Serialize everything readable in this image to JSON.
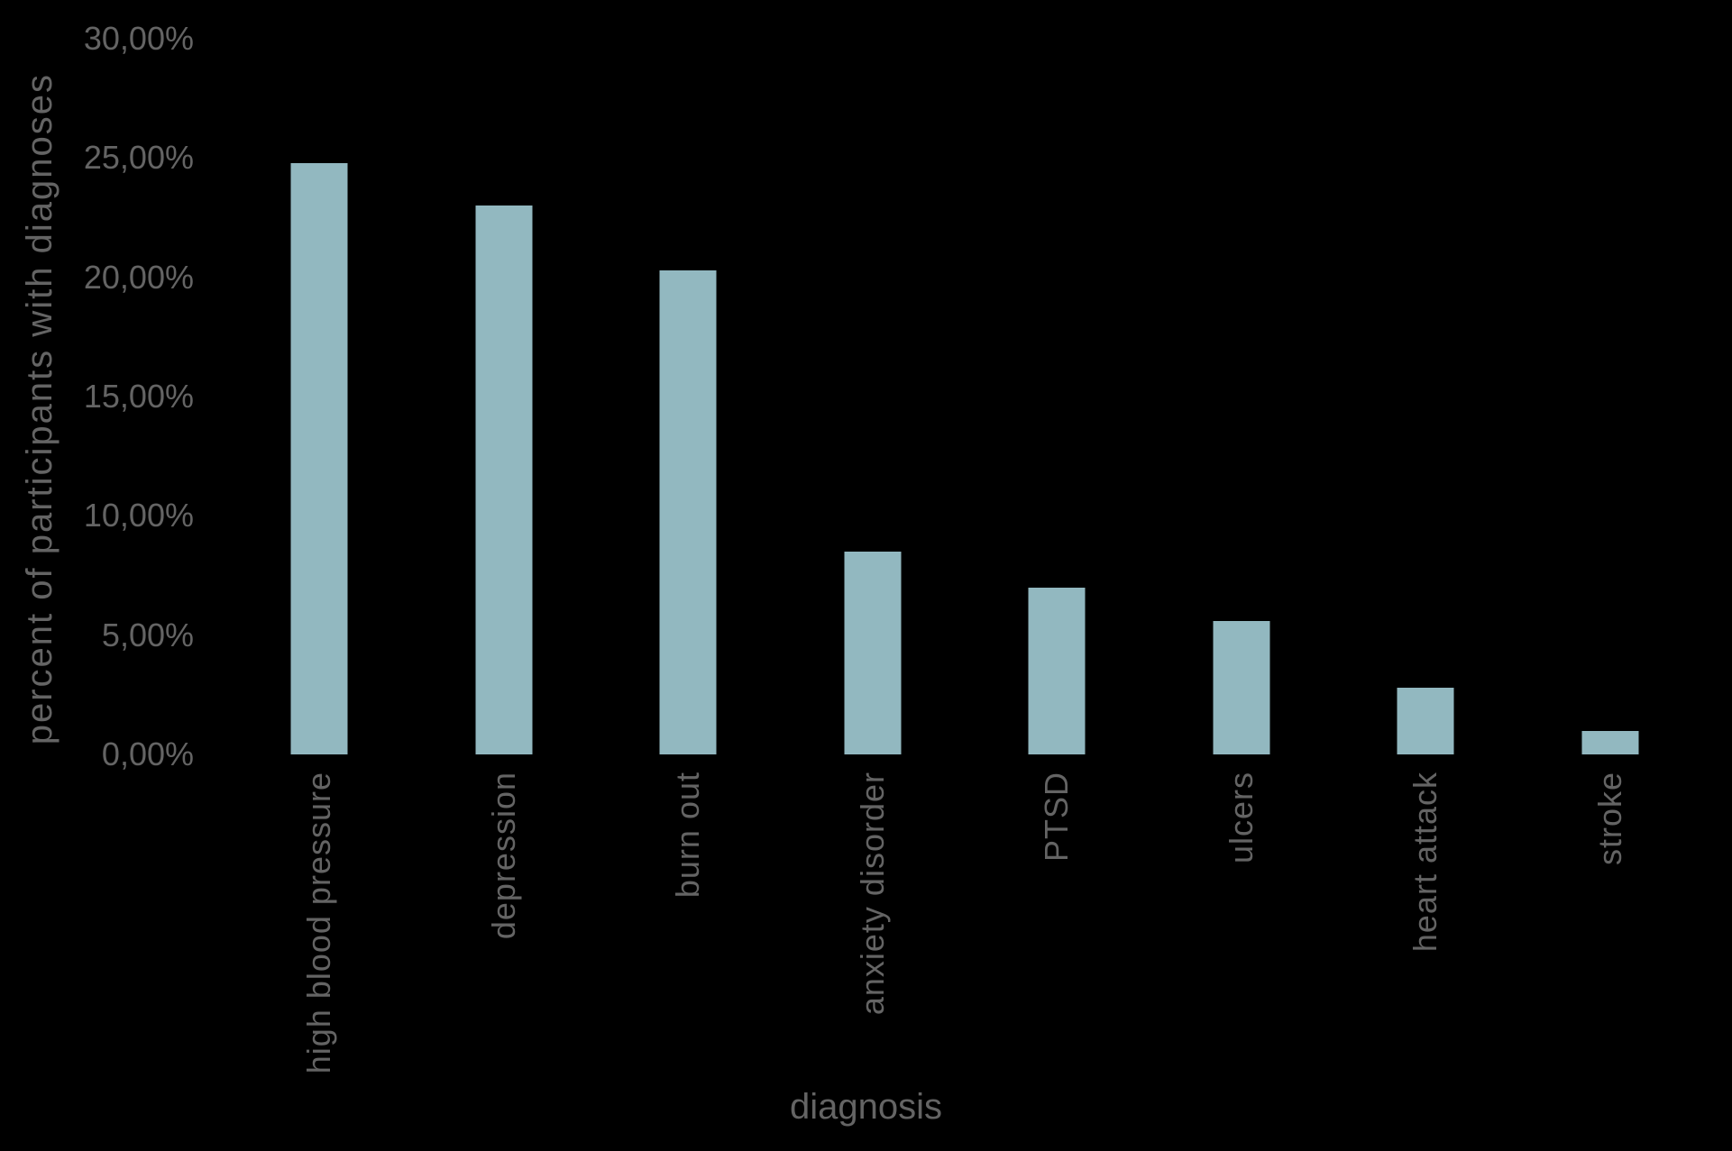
{
  "chart_data": {
    "type": "bar",
    "categories": [
      "high blood pressure",
      "depression",
      "burn out",
      "anxiety disorder",
      "PTSD",
      "ulcers",
      "heart attack",
      "stroke"
    ],
    "values": [
      24.8,
      23.0,
      20.3,
      8.5,
      7.0,
      5.6,
      2.8,
      1.0
    ],
    "title": "",
    "xlabel": "diagnosis",
    "ylabel": "percent of participants with diagnoses",
    "ylim": [
      0,
      30
    ],
    "ytick_step": 5,
    "ytick_labels": [
      "0,00%",
      "5,00%",
      "10,00%",
      "15,00%",
      "20,00%",
      "25,00%",
      "30,00%"
    ],
    "grid": false,
    "legend": false,
    "number_format": "comma-decimal-percent",
    "colors": {
      "bar": "#92b8c0",
      "text": "#646464",
      "background": "#000000"
    }
  }
}
